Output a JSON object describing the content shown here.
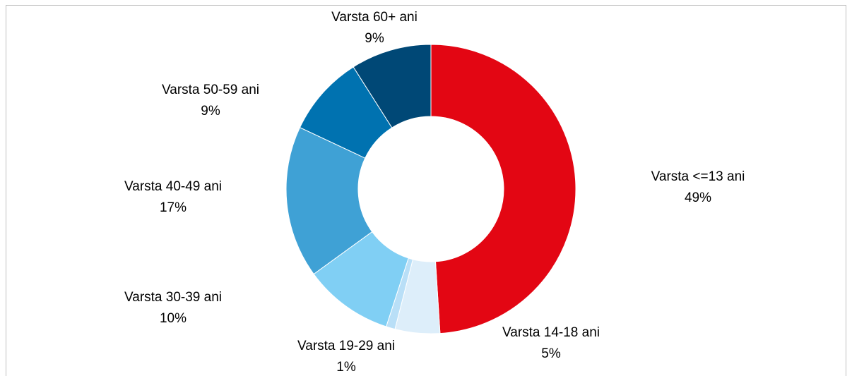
{
  "chart_data": {
    "type": "donut",
    "categories": [
      "Varsta <=13 ani",
      "Varsta 14-18 ani",
      "Varsta 19-29 ani",
      "Varsta 30-39 ani",
      "Varsta 40-49 ani",
      "Varsta 50-59 ani",
      "Varsta 60+ ani"
    ],
    "values": [
      49,
      5,
      1,
      10,
      17,
      9,
      9
    ],
    "value_labels": [
      "49%",
      "5%",
      "1%",
      "10%",
      "17%",
      "9%",
      "9%"
    ],
    "colors": [
      "#e30613",
      "#ddeefa",
      "#b9dff7",
      "#80cff4",
      "#3fa1d5",
      "#0072b0",
      "#004876"
    ]
  }
}
